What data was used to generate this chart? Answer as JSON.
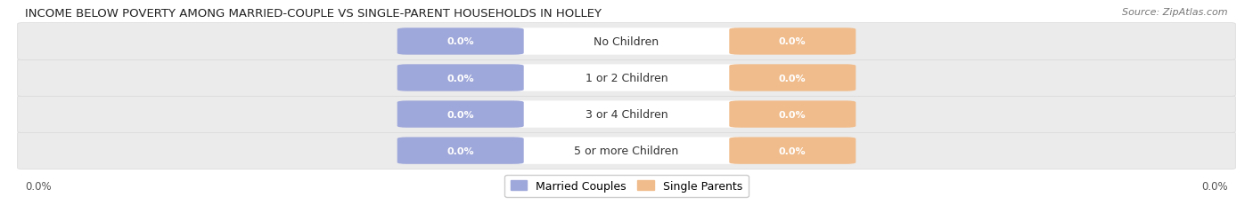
{
  "title": "INCOME BELOW POVERTY AMONG MARRIED-COUPLE VS SINGLE-PARENT HOUSEHOLDS IN HOLLEY",
  "source": "Source: ZipAtlas.com",
  "categories": [
    "No Children",
    "1 or 2 Children",
    "3 or 4 Children",
    "5 or more Children"
  ],
  "married_values": [
    0.0,
    0.0,
    0.0,
    0.0
  ],
  "single_values": [
    0.0,
    0.0,
    0.0,
    0.0
  ],
  "married_color": "#9fa8da",
  "single_color": "#f0bc8c",
  "row_bg_color": "#ebebeb",
  "row_border_color": "#d8d8d8",
  "bar_label_color": "#ffffff",
  "category_label_color": "#333333",
  "axis_label": "0.0%",
  "legend_married": "Married Couples",
  "legend_single": "Single Parents",
  "title_fontsize": 9.5,
  "source_fontsize": 8,
  "category_fontsize": 9,
  "bar_label_fontsize": 8,
  "axis_fontsize": 8.5,
  "bg_color": "#ffffff"
}
